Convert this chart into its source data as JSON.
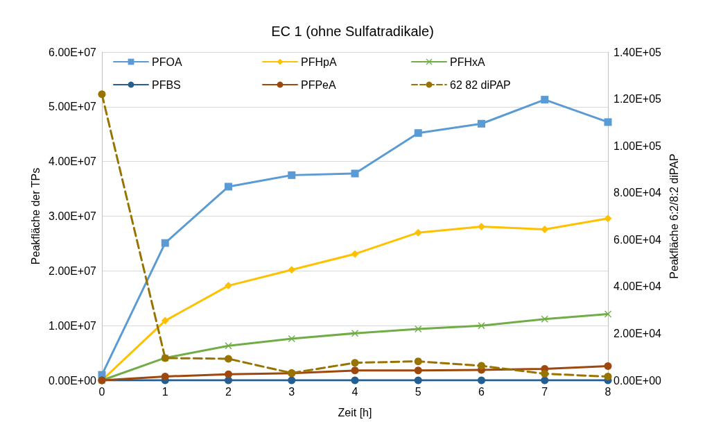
{
  "chart_data": {
    "type": "line",
    "title": "EC 1 (ohne Sulfatradikale)",
    "xlabel": "Zeit [h]",
    "ylabel": "Peakfläche der TPs",
    "y2label": "Peakfläche 6:2/8:2 diPAP",
    "x": [
      0,
      1,
      2,
      3,
      4,
      5,
      6,
      7,
      8
    ],
    "xlim": [
      0,
      8
    ],
    "xticks": [
      0,
      1,
      2,
      3,
      4,
      5,
      6,
      7,
      8
    ],
    "ylim": [
      0,
      60000000
    ],
    "yticks": [
      {
        "value": 0,
        "label": "0.00E+00"
      },
      {
        "value": 10000000,
        "label": "1.00E+07"
      },
      {
        "value": 20000000,
        "label": "2.00E+07"
      },
      {
        "value": 30000000,
        "label": "3.00E+07"
      },
      {
        "value": 40000000,
        "label": "4.00E+07"
      },
      {
        "value": 50000000,
        "label": "5.00E+07"
      },
      {
        "value": 60000000,
        "label": "6.00E+07"
      }
    ],
    "y2lim": [
      0,
      140000
    ],
    "y2ticks": [
      {
        "value": 0,
        "label": "0.00E+00"
      },
      {
        "value": 20000,
        "label": "2.00E+04"
      },
      {
        "value": 40000,
        "label": "4.00E+04"
      },
      {
        "value": 60000,
        "label": "6.00E+04"
      },
      {
        "value": 80000,
        "label": "8.00E+04"
      },
      {
        "value": 100000,
        "label": "1.00E+05"
      },
      {
        "value": 120000,
        "label": "1.20E+05"
      },
      {
        "value": 140000,
        "label": "1.40E+05"
      }
    ],
    "grid": "y",
    "legend": "top left",
    "series": [
      {
        "name": "PFOA",
        "color": "#5b9bd5",
        "marker": "square",
        "line_style": "solid",
        "values": [
          1000000,
          25100000,
          35400000,
          37500000,
          37800000,
          45200000,
          46900000,
          51300000,
          47200000
        ]
      },
      {
        "name": "PFHpA",
        "color": "#ffc000",
        "marker": "diamond",
        "line_style": "solid",
        "values": [
          0,
          10900000,
          17300000,
          20200000,
          23100000,
          27000000,
          28100000,
          27600000,
          29600000
        ]
      },
      {
        "name": "PFHxA",
        "color": "#70ad47",
        "marker": "cross",
        "line_style": "solid",
        "values": [
          0,
          4100000,
          6300000,
          7600000,
          8600000,
          9400000,
          10000000,
          11200000,
          12100000
        ]
      },
      {
        "name": "PFBS",
        "color": "#255e91",
        "marker": "circle",
        "line_style": "solid",
        "values": [
          0,
          0,
          0,
          0,
          0,
          0,
          0,
          0,
          0
        ]
      },
      {
        "name": "PFPeA",
        "color": "#9e480e",
        "marker": "circle",
        "line_style": "solid",
        "values": [
          0,
          700000,
          1100000,
          1300000,
          1800000,
          1800000,
          1900000,
          2100000,
          2600000
        ]
      },
      {
        "name": "62 82 diPAP",
        "color": "#997300",
        "marker": "circle",
        "line_style": "dashed",
        "axis": "y2",
        "values": [
          122000,
          9500,
          9200,
          3100,
          7500,
          8100,
          6200,
          2800,
          1600
        ]
      }
    ]
  }
}
